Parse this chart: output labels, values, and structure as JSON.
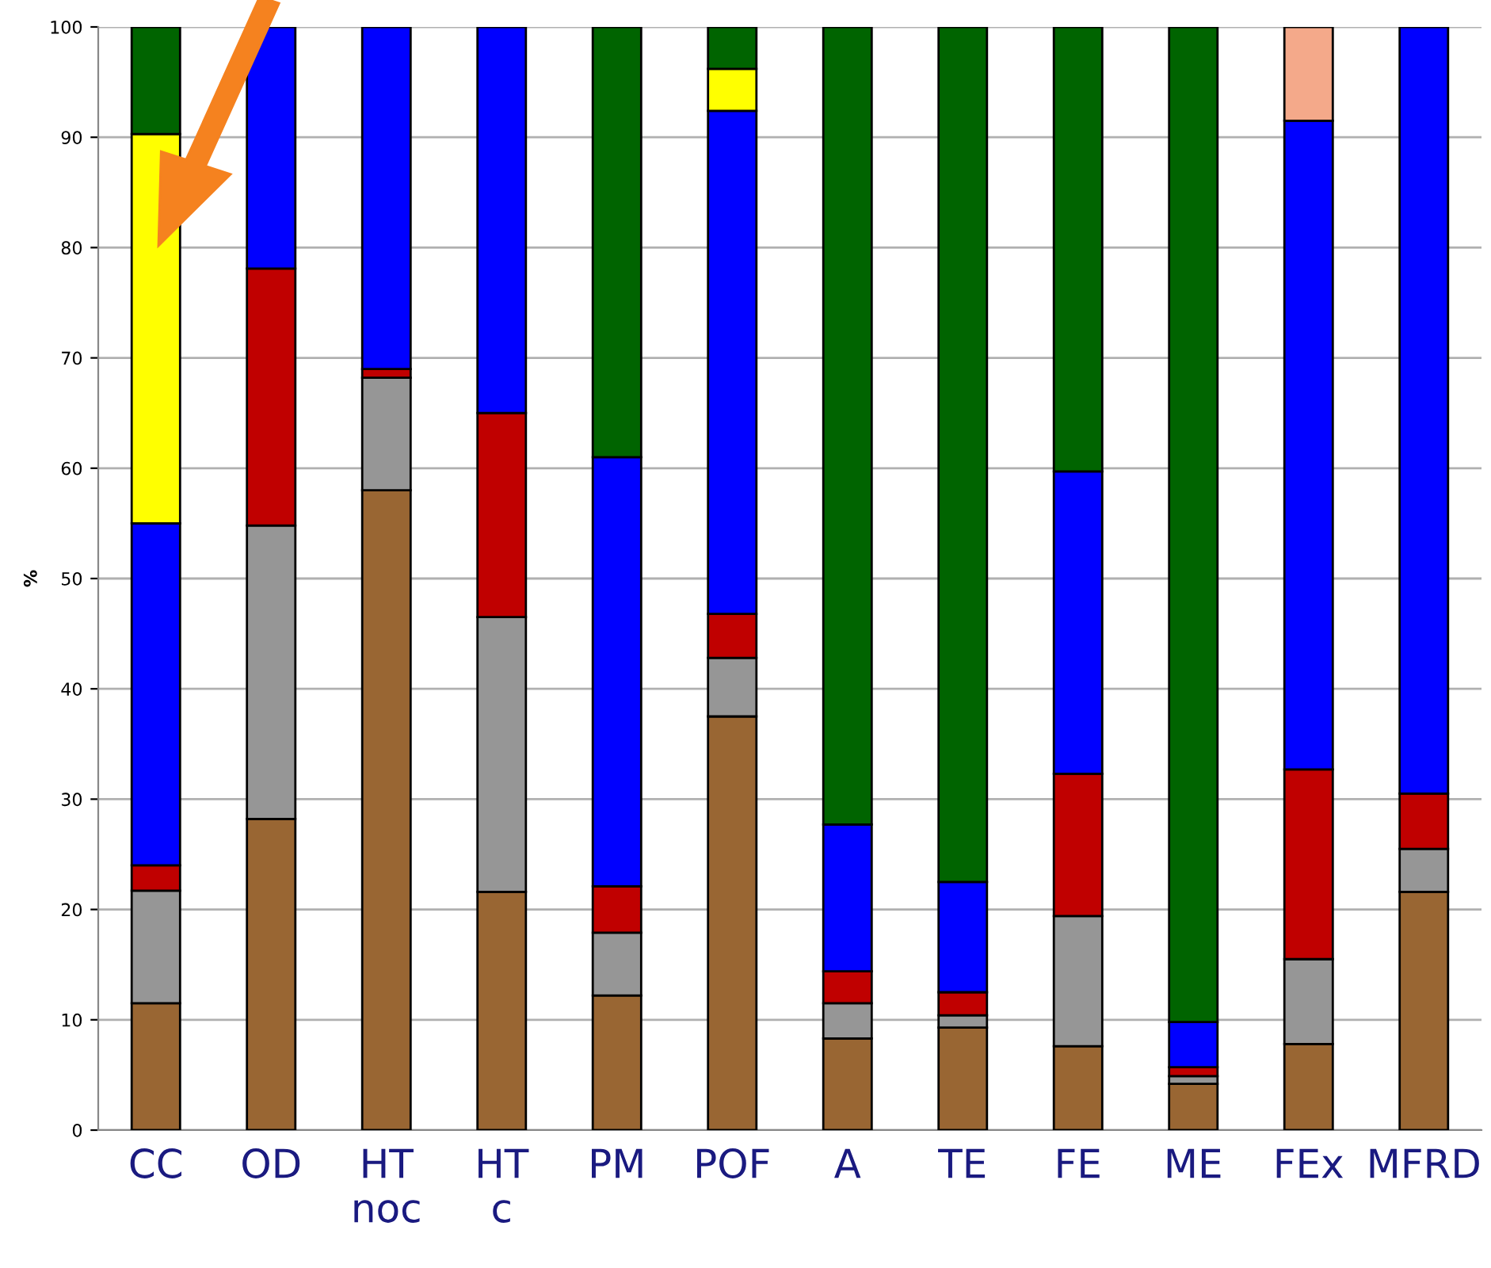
{
  "chart_data": {
    "type": "bar",
    "stacked": true,
    "ylabel": "%",
    "categories": [
      "CC",
      "OD",
      "HT\nnoc",
      "HT\nc",
      "PM",
      "POF",
      "A",
      "TE",
      "FE",
      "ME",
      "FEx",
      "MFRD"
    ],
    "series": [
      {
        "color": "#996633",
        "values": [
          11.5,
          28.2,
          58,
          21.6,
          12.2,
          37.5,
          8.3,
          9.3,
          7.6,
          4.2,
          7.8,
          21.6
        ]
      },
      {
        "color": "#969696",
        "values": [
          10.2,
          26.6,
          10.2,
          24.9,
          5.7,
          5.3,
          3.2,
          1.1,
          11.8,
          0.7,
          7.7,
          3.9
        ]
      },
      {
        "color": "#c00000",
        "values": [
          2.3,
          23.3,
          0.8,
          18.5,
          4.2,
          4.0,
          2.9,
          2.1,
          12.9,
          0.8,
          17.2,
          5.0
        ]
      },
      {
        "color": "#0000ff",
        "values": [
          31,
          21.9,
          31,
          35,
          38.9,
          45.6,
          13.3,
          10,
          27.4,
          4.1,
          58.8,
          69.5
        ]
      },
      {
        "color": "#ffff00",
        "values": [
          35.3,
          null,
          null,
          null,
          null,
          3.8,
          null,
          null,
          null,
          null,
          null,
          null
        ]
      },
      {
        "color": "#006400",
        "values": [
          9.7,
          null,
          null,
          null,
          39,
          3.8,
          72.3,
          77.5,
          40.3,
          90.2,
          null,
          null
        ]
      },
      {
        "color": "#f4a98a",
        "values": [
          null,
          null,
          null,
          null,
          null,
          null,
          null,
          null,
          null,
          null,
          8.5,
          null
        ]
      }
    ],
    "ylim": [
      0,
      100
    ],
    "yticks": [
      0,
      10,
      20,
      30,
      40,
      50,
      60,
      70,
      80,
      90,
      100
    ],
    "grid": "y"
  }
}
